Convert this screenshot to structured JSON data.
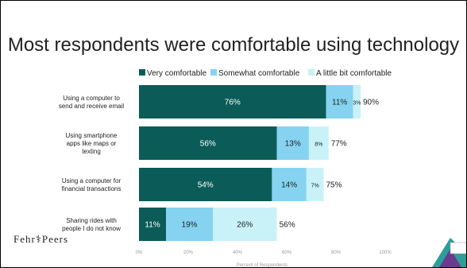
{
  "slide": {
    "title": "Most respondents were comfortable using technology",
    "footer_logo": "Fehr⚕Peers"
  },
  "chart_data": {
    "type": "bar",
    "orientation": "horizontal",
    "stacked": true,
    "title": "",
    "xlabel": "Percent of Respondents",
    "ylabel": "",
    "xlim": [
      0,
      100
    ],
    "x_ticks": [
      "0%",
      "20%",
      "40%",
      "60%",
      "80%",
      "100%"
    ],
    "legend_position": "top",
    "categories": [
      [
        "Using a computer to",
        "send and receive email"
      ],
      [
        "Using smartphone",
        "apps like maps or",
        "texting"
      ],
      [
        "Using a computer for",
        "financial transactions"
      ],
      [
        "Sharing rides with",
        "people I do not know"
      ]
    ],
    "series": [
      {
        "name": "Very comfortable",
        "color": "#0b5c58",
        "values": [
          76,
          56,
          54,
          11
        ],
        "labels": [
          "76%",
          "56%",
          "54%",
          "11%"
        ]
      },
      {
        "name": "Somewhat comfortable",
        "color": "#85d3f0",
        "values": [
          11,
          13,
          14,
          19
        ],
        "labels": [
          "11%",
          "13%",
          "14%",
          "19%"
        ]
      },
      {
        "name": "A little bit comfortable",
        "color": "#c8f2f8",
        "values": [
          3,
          8,
          7,
          26
        ],
        "labels": [
          "3%",
          "8%",
          "7%",
          "26%"
        ]
      }
    ],
    "totals": [
      "90%",
      "77%",
      "75%",
      "56%"
    ]
  }
}
